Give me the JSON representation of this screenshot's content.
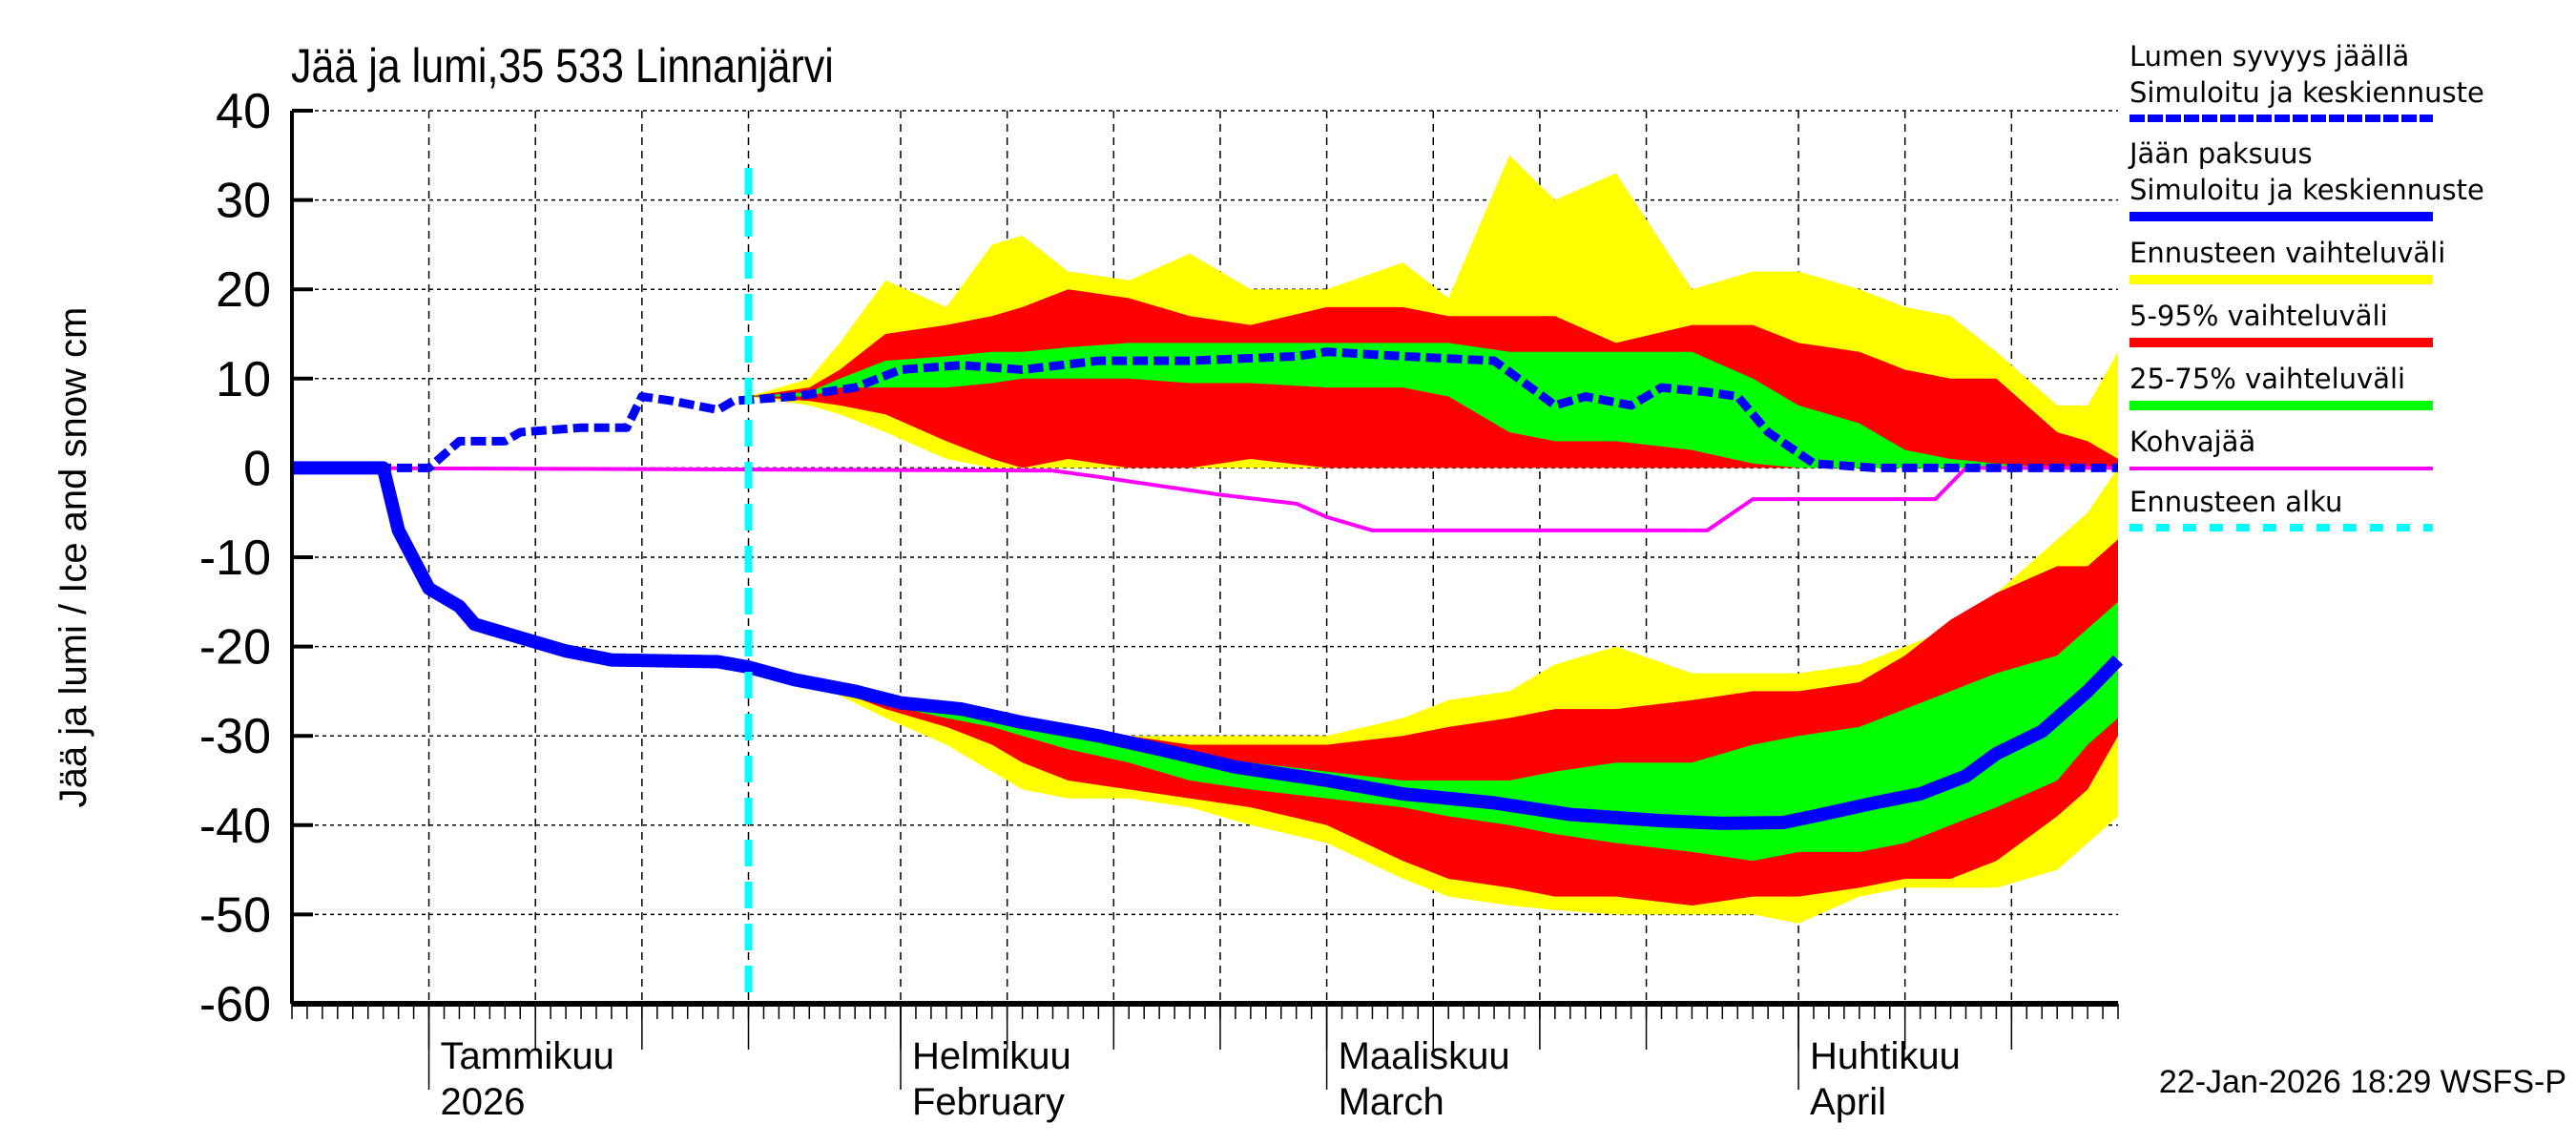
{
  "chart_data": {
    "type": "area",
    "title": "Jää ja lumi,35 533 Linnanjärvi",
    "ylabel": "Jää ja lumi / Ice and snow    cm",
    "ylim": [
      -60,
      40
    ],
    "yticks": [
      "40",
      "30",
      "20",
      "10",
      "0",
      "-10",
      "-20",
      "-30",
      "-40",
      "-50",
      "-60"
    ],
    "xlim": [
      "2025-12-23",
      "2026-04-22"
    ],
    "grid": true,
    "legend_position": "right",
    "month_labels": [
      {
        "date": "2026-01-01",
        "line1": "Tammikuu",
        "line2": "2026"
      },
      {
        "date": "2026-02-01",
        "line1": "Helmikuu",
        "line2": "February"
      },
      {
        "date": "2026-03-01",
        "line1": "Maaliskuu",
        "line2": "March"
      },
      {
        "date": "2026-04-01",
        "line1": "Huhtikuu",
        "line2": "April"
      }
    ],
    "forecast_start": "2026-01-22",
    "footer": "22-Jan-2026 18:29 WSFS-P",
    "colors": {
      "snow": "#0000ff",
      "ice": "#0000ff",
      "range": "#ffff00",
      "p5_95": "#ff0000",
      "p25_75": "#00ff00",
      "slush": "#ff00ff",
      "forecast_start": "#00ffff"
    },
    "band_dates": [
      "2026-01-22",
      "2026-01-26",
      "2026-01-28",
      "2026-01-31",
      "2026-02-04",
      "2026-02-07",
      "2026-02-09",
      "2026-02-12",
      "2026-02-16",
      "2026-02-20",
      "2026-02-24",
      "2026-03-01",
      "2026-03-06",
      "2026-03-09",
      "2026-03-13",
      "2026-03-16",
      "2026-03-20",
      "2026-03-25",
      "2026-03-29",
      "2026-04-01",
      "2026-04-05",
      "2026-04-08",
      "2026-04-11",
      "2026-04-14",
      "2026-04-18",
      "2026-04-20",
      "2026-04-22"
    ],
    "snow_bands": {
      "range_hi": [
        8,
        10,
        14,
        21,
        18,
        25,
        26,
        22,
        21,
        24,
        20,
        20,
        23,
        19,
        35,
        30,
        33,
        20,
        22,
        22,
        20,
        18,
        17,
        13,
        7,
        7,
        13
      ],
      "p95": [
        8,
        9,
        11,
        15,
        16,
        17,
        18,
        20,
        19,
        17,
        16,
        18,
        18,
        17,
        17,
        17,
        14,
        16,
        16,
        14,
        13,
        11,
        10,
        10,
        4,
        3,
        1
      ],
      "p75": [
        8,
        8.5,
        10,
        12,
        12.5,
        13,
        13,
        13.5,
        14,
        14,
        14,
        14,
        14,
        14,
        13,
        13,
        13,
        13,
        10,
        7,
        5,
        2,
        1,
        0.5,
        0,
        0,
        0
      ],
      "p25": [
        8,
        8,
        9,
        9,
        9,
        9.5,
        10,
        10,
        10,
        9.5,
        9.5,
        9,
        9,
        8,
        4,
        3,
        3,
        2,
        0.5,
        0,
        0,
        0,
        0,
        0,
        0,
        0,
        0
      ],
      "p5": [
        8,
        7.5,
        7,
        6,
        3,
        1,
        0,
        1,
        0,
        0,
        1,
        0,
        0,
        0,
        0,
        0,
        0,
        0,
        0,
        0,
        0,
        0,
        0,
        0,
        0,
        0,
        0
      ],
      "range_lo": [
        8,
        7,
        6,
        4,
        1,
        0,
        0,
        0,
        0,
        0,
        0,
        0,
        0,
        0,
        0,
        0,
        0,
        0,
        0,
        0,
        0,
        0,
        0,
        0,
        0,
        0,
        0
      ]
    },
    "ice_bands": {
      "range_hi": [
        -22.3,
        -24,
        -25,
        -26,
        -27,
        -27.5,
        -28,
        -29,
        -30,
        -30,
        -30,
        -30,
        -28,
        -26,
        -25,
        -22,
        -20,
        -23,
        -23,
        -23,
        -22,
        -20,
        -18,
        -14,
        -8,
        -5,
        0
      ],
      "p95": [
        -22.3,
        -24,
        -25,
        -26,
        -27,
        -28,
        -28.5,
        -29,
        -30,
        -31,
        -31,
        -31,
        -30,
        -29,
        -28,
        -27,
        -27,
        -26,
        -25,
        -25,
        -24,
        -21,
        -17,
        -14,
        -11,
        -11,
        -8
      ],
      "p75": [
        -22.3,
        -24,
        -25,
        -26,
        -27,
        -28,
        -29,
        -30,
        -31,
        -32,
        -33,
        -34,
        -35,
        -35,
        -35,
        -34,
        -33,
        -33,
        -31,
        -30,
        -29,
        -27,
        -25,
        -23,
        -21,
        -18,
        -15
      ],
      "p25": [
        -22.3,
        -24,
        -25,
        -26.5,
        -28,
        -29,
        -30,
        -31.5,
        -33,
        -35,
        -36,
        -37,
        -38,
        -39,
        -40,
        -41,
        -42,
        -43,
        -44,
        -43,
        -43,
        -42,
        -40,
        -38,
        -35,
        -31,
        -28
      ],
      "p5": [
        -22.3,
        -24,
        -25,
        -27,
        -29,
        -31,
        -33,
        -35,
        -36,
        -37,
        -38,
        -40,
        -44,
        -46,
        -47,
        -48,
        -48,
        -49,
        -48,
        -48,
        -47,
        -46,
        -46,
        -44,
        -39,
        -36,
        -30
      ],
      "range_lo": [
        -22.3,
        -24,
        -25.5,
        -28,
        -31,
        -34,
        -36,
        -37,
        -37,
        -38,
        -40,
        -42,
        -46,
        -48,
        -49,
        -49.5,
        -50,
        -50,
        -50,
        -51,
        -48,
        -47,
        -47,
        -47,
        -45,
        -42,
        -39
      ]
    },
    "series": [
      {
        "name": "Lumen syvyys jäällä Simuloitu ja keskiennuste",
        "key": "snow",
        "x": [
          "2025-12-23",
          "2026-01-01",
          "2026-01-03",
          "2026-01-06",
          "2026-01-07",
          "2026-01-11",
          "2026-01-14",
          "2026-01-15",
          "2026-01-17",
          "2026-01-20",
          "2026-01-21",
          "2026-01-25",
          "2026-01-29",
          "2026-02-01",
          "2026-02-05",
          "2026-02-09",
          "2026-02-14",
          "2026-02-20",
          "2026-02-27",
          "2026-03-01",
          "2026-03-06",
          "2026-03-12",
          "2026-03-16",
          "2026-03-18",
          "2026-03-21",
          "2026-03-23",
          "2026-03-26",
          "2026-03-28",
          "2026-03-30",
          "2026-04-02",
          "2026-04-06",
          "2026-04-22"
        ],
        "y": [
          0,
          0,
          3,
          3,
          4,
          4.5,
          4.5,
          8,
          7.5,
          6.5,
          7.5,
          8,
          9,
          11,
          11.5,
          11,
          12,
          12,
          12.5,
          13,
          12.5,
          12,
          7,
          8,
          7,
          9,
          8.5,
          8,
          4,
          0.5,
          0,
          0
        ]
      },
      {
        "name": "Jään paksuus Simuloitu ja keskiennuste",
        "key": "ice",
        "x": [
          "2025-12-23",
          "2025-12-29",
          "2025-12-30",
          "2026-01-01",
          "2026-01-03",
          "2026-01-04",
          "2026-01-06",
          "2026-01-10",
          "2026-01-13",
          "2026-01-20",
          "2026-01-22",
          "2026-01-25",
          "2026-01-29",
          "2026-02-01",
          "2026-02-05",
          "2026-02-09",
          "2026-02-14",
          "2026-02-18",
          "2026-02-23",
          "2026-03-01",
          "2026-03-06",
          "2026-03-12",
          "2026-03-17",
          "2026-03-23",
          "2026-03-27",
          "2026-03-31",
          "2026-04-02",
          "2026-04-06",
          "2026-04-09",
          "2026-04-12",
          "2026-04-14",
          "2026-04-17",
          "2026-04-20",
          "2026-04-22"
        ],
        "y": [
          0,
          0,
          -7,
          -13.5,
          -15.5,
          -17.5,
          -18.5,
          -20.5,
          -21.5,
          -21.7,
          -22.3,
          -23.7,
          -25,
          -26.3,
          -27,
          -28.5,
          -30,
          -31.5,
          -33.5,
          -35,
          -36.5,
          -37.5,
          -38.8,
          -39.5,
          -39.8,
          -39.7,
          -39,
          -37.5,
          -36.5,
          -34.5,
          -32,
          -29.5,
          -25,
          -21.5
        ]
      },
      {
        "name": "Kohvajää",
        "key": "slush",
        "x": [
          "2025-12-23",
          "2026-02-11",
          "2026-02-14",
          "2026-02-18",
          "2026-02-22",
          "2026-02-27",
          "2026-03-01",
          "2026-03-04",
          "2026-03-26",
          "2026-03-29",
          "2026-04-10",
          "2026-04-12",
          "2026-04-22"
        ],
        "y": [
          0,
          -0.3,
          -1,
          -2,
          -3,
          -4,
          -5.5,
          -7,
          -7,
          -3.5,
          -3.5,
          0,
          0
        ]
      }
    ]
  },
  "legend": [
    {
      "label": "Lumen syvyys jäällä\nSimuloitu ja keskiennuste",
      "style": "dashed",
      "color": "#0000ff"
    },
    {
      "label": "Jään paksuus\nSimuloitu ja keskiennuste",
      "style": "solid",
      "color": "#0000ff"
    },
    {
      "label": "Ennusteen vaihteluväli",
      "style": "solid",
      "color": "#ffff00"
    },
    {
      "label": "5-95% vaihteluväli",
      "style": "solid",
      "color": "#ff0000"
    },
    {
      "label": "25-75% vaihteluväli",
      "style": "solid",
      "color": "#00ff00"
    },
    {
      "label": "Kohvajää",
      "style": "thin",
      "color": "#ff00ff"
    },
    {
      "label": "Ennusteen alku",
      "style": "dashed-wide",
      "color": "#00ffff"
    }
  ]
}
